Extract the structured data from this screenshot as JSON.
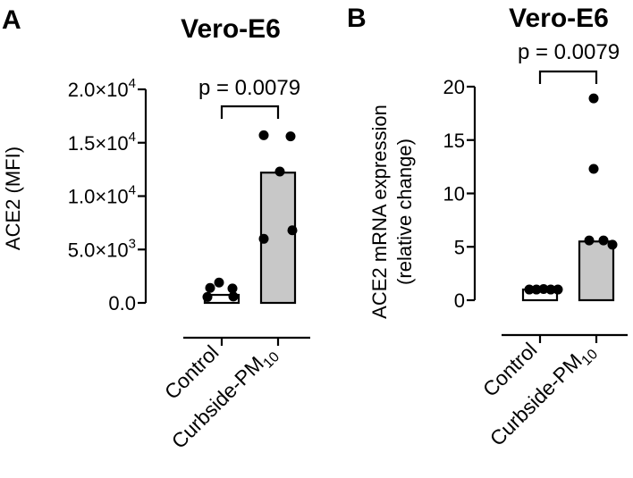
{
  "chart_data": [
    {
      "type": "bar",
      "panel": "A",
      "title": "Vero-E6",
      "ylabel": "ACE2 (MFI)",
      "categories": [
        "Control",
        "Curbside-PM10"
      ],
      "category_labels": [
        {
          "main": "Control",
          "sub": ""
        },
        {
          "main": "Curbside-PM",
          "sub": "10"
        }
      ],
      "ylim": [
        0,
        20000
      ],
      "yticks": [
        {
          "value": 0,
          "mant": "0.0",
          "exp": ""
        },
        {
          "value": 5000,
          "mant": "5.0×10",
          "exp": "3"
        },
        {
          "value": 10000,
          "mant": "1.0×10",
          "exp": "4"
        },
        {
          "value": 15000,
          "mant": "1.5×10",
          "exp": "4"
        },
        {
          "value": 20000,
          "mant": "2.0×10",
          "exp": "4"
        }
      ],
      "bar_colors": [
        "#ffffff",
        "#c8c8c8"
      ],
      "series": [
        {
          "name": "Control",
          "bar": 750,
          "points": [
            550,
            1900,
            1350,
            1400,
            600
          ]
        },
        {
          "name": "Curbside-PM10",
          "bar": 12200,
          "points": [
            15700,
            15600,
            12300,
            6000,
            6800
          ]
        }
      ],
      "annotation": "p = 0.0079"
    },
    {
      "type": "bar",
      "panel": "B",
      "title": "Vero-E6",
      "ylabel": "ACE2 mRNA expression",
      "ylabel2": "(relative change)",
      "categories": [
        "Control",
        "Curbside-PM10"
      ],
      "category_labels": [
        {
          "main": "Control",
          "sub": ""
        },
        {
          "main": "Curbside-PM",
          "sub": "10"
        }
      ],
      "ylim": [
        0,
        20
      ],
      "yticks": [
        {
          "value": 0,
          "mant": "0",
          "exp": ""
        },
        {
          "value": 5,
          "mant": "5",
          "exp": ""
        },
        {
          "value": 10,
          "mant": "10",
          "exp": ""
        },
        {
          "value": 15,
          "mant": "15",
          "exp": ""
        },
        {
          "value": 20,
          "mant": "20",
          "exp": ""
        }
      ],
      "bar_colors": [
        "#ffffff",
        "#c8c8c8"
      ],
      "series": [
        {
          "name": "Control",
          "bar": 1.0,
          "points": [
            1.0,
            1.0,
            1.05,
            1.0,
            1.0
          ]
        },
        {
          "name": "Curbside-PM10",
          "bar": 5.5,
          "points": [
            18.9,
            12.3,
            5.6,
            5.6,
            5.2
          ]
        }
      ],
      "annotation": "p = 0.0079"
    }
  ]
}
